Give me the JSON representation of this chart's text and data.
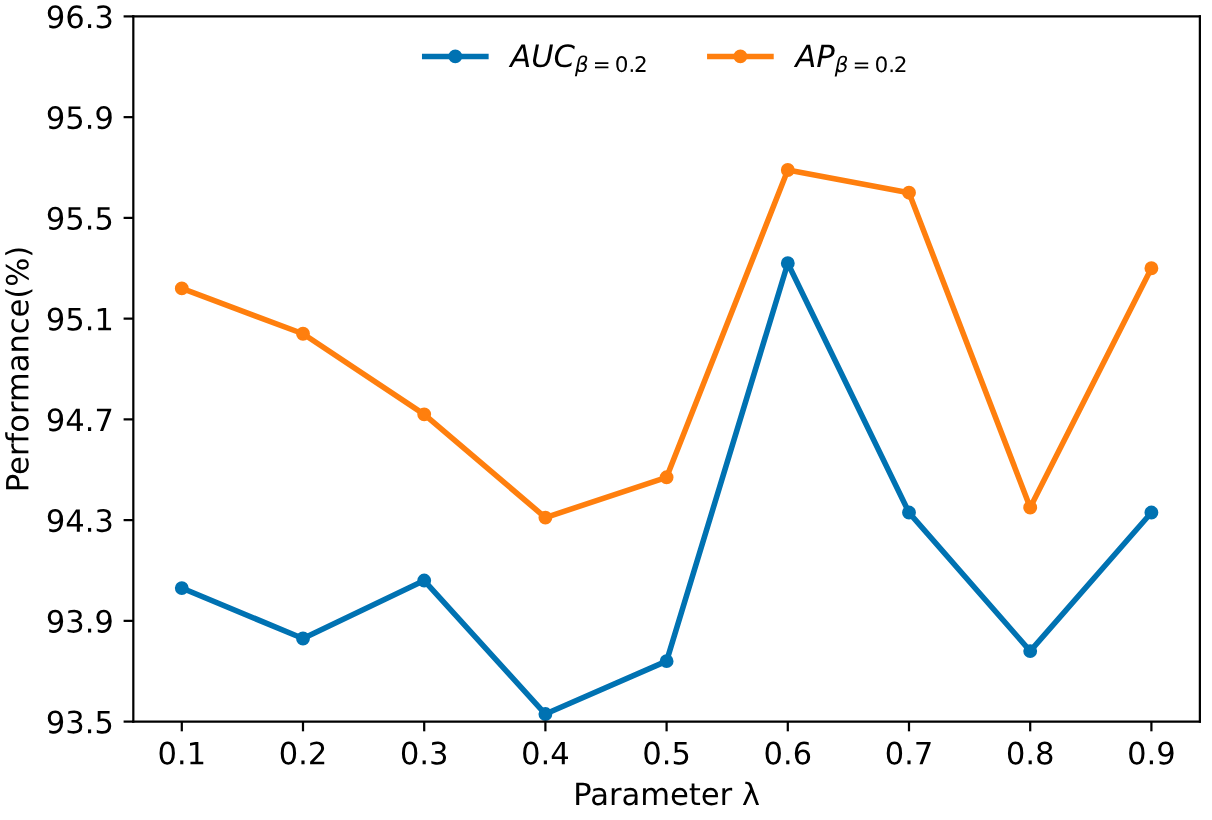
{
  "chart_data": {
    "type": "line",
    "xlabel": "Parameter λ",
    "ylabel": "Performance(%)",
    "categories": [
      "0.1",
      "0.2",
      "0.3",
      "0.4",
      "0.5",
      "0.6",
      "0.7",
      "0.8",
      "0.9"
    ],
    "series": [
      {
        "name": "AUC$_{β=0.2}$",
        "color": "#0072b2",
        "values": [
          94.03,
          93.83,
          94.06,
          93.53,
          93.74,
          95.32,
          94.33,
          93.78,
          94.33
        ]
      },
      {
        "name": "AP$_{β=0.2}$",
        "color": "#ff7f0e",
        "values": [
          95.22,
          95.04,
          94.72,
          94.31,
          94.47,
          95.69,
          95.6,
          94.35,
          95.3
        ]
      }
    ],
    "ylim": [
      93.5,
      96.3
    ],
    "yticks": [
      93.5,
      93.9,
      94.3,
      94.7,
      95.1,
      95.5,
      95.9,
      96.3
    ],
    "marker": "circle",
    "line_style": "solid",
    "legend": "top",
    "grid": false
  }
}
